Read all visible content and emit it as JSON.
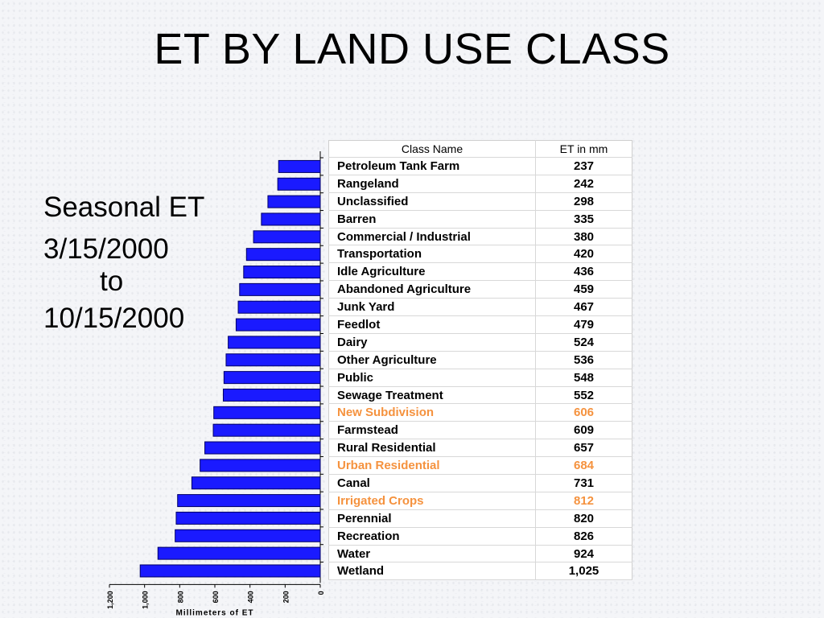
{
  "slide": {
    "title": "ET BY LAND USE CLASS",
    "period": {
      "label": "Seasonal ET",
      "start": "3/15/2000",
      "to": "to",
      "end": "10/15/2000"
    }
  },
  "table": {
    "headers": [
      "Class Name",
      "ET in mm"
    ],
    "rows": [
      {
        "name": "Petroleum Tank Farm",
        "value": "237",
        "highlight": false
      },
      {
        "name": "Rangeland",
        "value": "242",
        "highlight": false
      },
      {
        "name": "Unclassified",
        "value": "298",
        "highlight": false
      },
      {
        "name": "Barren",
        "value": "335",
        "highlight": false
      },
      {
        "name": "Commercial / Industrial",
        "value": "380",
        "highlight": false
      },
      {
        "name": "Transportation",
        "value": "420",
        "highlight": false
      },
      {
        "name": "Idle Agriculture",
        "value": "436",
        "highlight": false
      },
      {
        "name": "Abandoned Agriculture",
        "value": "459",
        "highlight": false
      },
      {
        "name": "Junk Yard",
        "value": "467",
        "highlight": false
      },
      {
        "name": "Feedlot",
        "value": "479",
        "highlight": false
      },
      {
        "name": "Dairy",
        "value": "524",
        "highlight": false
      },
      {
        "name": "Other Agriculture",
        "value": "536",
        "highlight": false
      },
      {
        "name": "Public",
        "value": "548",
        "highlight": false
      },
      {
        "name": "Sewage Treatment",
        "value": "552",
        "highlight": false
      },
      {
        "name": "New Subdivision",
        "value": "606",
        "highlight": true
      },
      {
        "name": "Farmstead",
        "value": "609",
        "highlight": false
      },
      {
        "name": "Rural Residential",
        "value": "657",
        "highlight": false
      },
      {
        "name": "Urban Residential",
        "value": "684",
        "highlight": true
      },
      {
        "name": "Canal",
        "value": "731",
        "highlight": false
      },
      {
        "name": "Irrigated Crops",
        "value": "812",
        "highlight": true
      },
      {
        "name": "Perennial",
        "value": "820",
        "highlight": false
      },
      {
        "name": "Recreation",
        "value": "826",
        "highlight": false
      },
      {
        "name": "Water",
        "value": "924",
        "highlight": false
      },
      {
        "name": "Wetland",
        "value": "1,025",
        "highlight": false
      }
    ]
  },
  "chart_data": {
    "type": "bar",
    "orientation": "horizontal",
    "direction": "right-to-left",
    "categories": [
      "Petroleum Tank Farm",
      "Rangeland",
      "Unclassified",
      "Barren",
      "Commercial / Industrial",
      "Transportation",
      "Idle Agriculture",
      "Abandoned Agriculture",
      "Junk Yard",
      "Feedlot",
      "Dairy",
      "Other Agriculture",
      "Public",
      "Sewage Treatment",
      "New Subdivision",
      "Farmstead",
      "Rural Residential",
      "Urban Residential",
      "Canal",
      "Irrigated Crops",
      "Perennial",
      "Recreation",
      "Water",
      "Wetland"
    ],
    "values": [
      237,
      242,
      298,
      335,
      380,
      420,
      436,
      459,
      467,
      479,
      524,
      536,
      548,
      552,
      606,
      609,
      657,
      684,
      731,
      812,
      820,
      826,
      924,
      1025
    ],
    "xlabel": "Millimeters of ET",
    "xlim": [
      0,
      1200
    ],
    "ticks": [
      "0",
      "200",
      "400",
      "600",
      "800",
      "1,000",
      "1,200"
    ],
    "grid": false,
    "colors": {
      "bar": "#1a1aff",
      "bar_edge": "#000066",
      "highlight_text": "#f5923e"
    }
  }
}
